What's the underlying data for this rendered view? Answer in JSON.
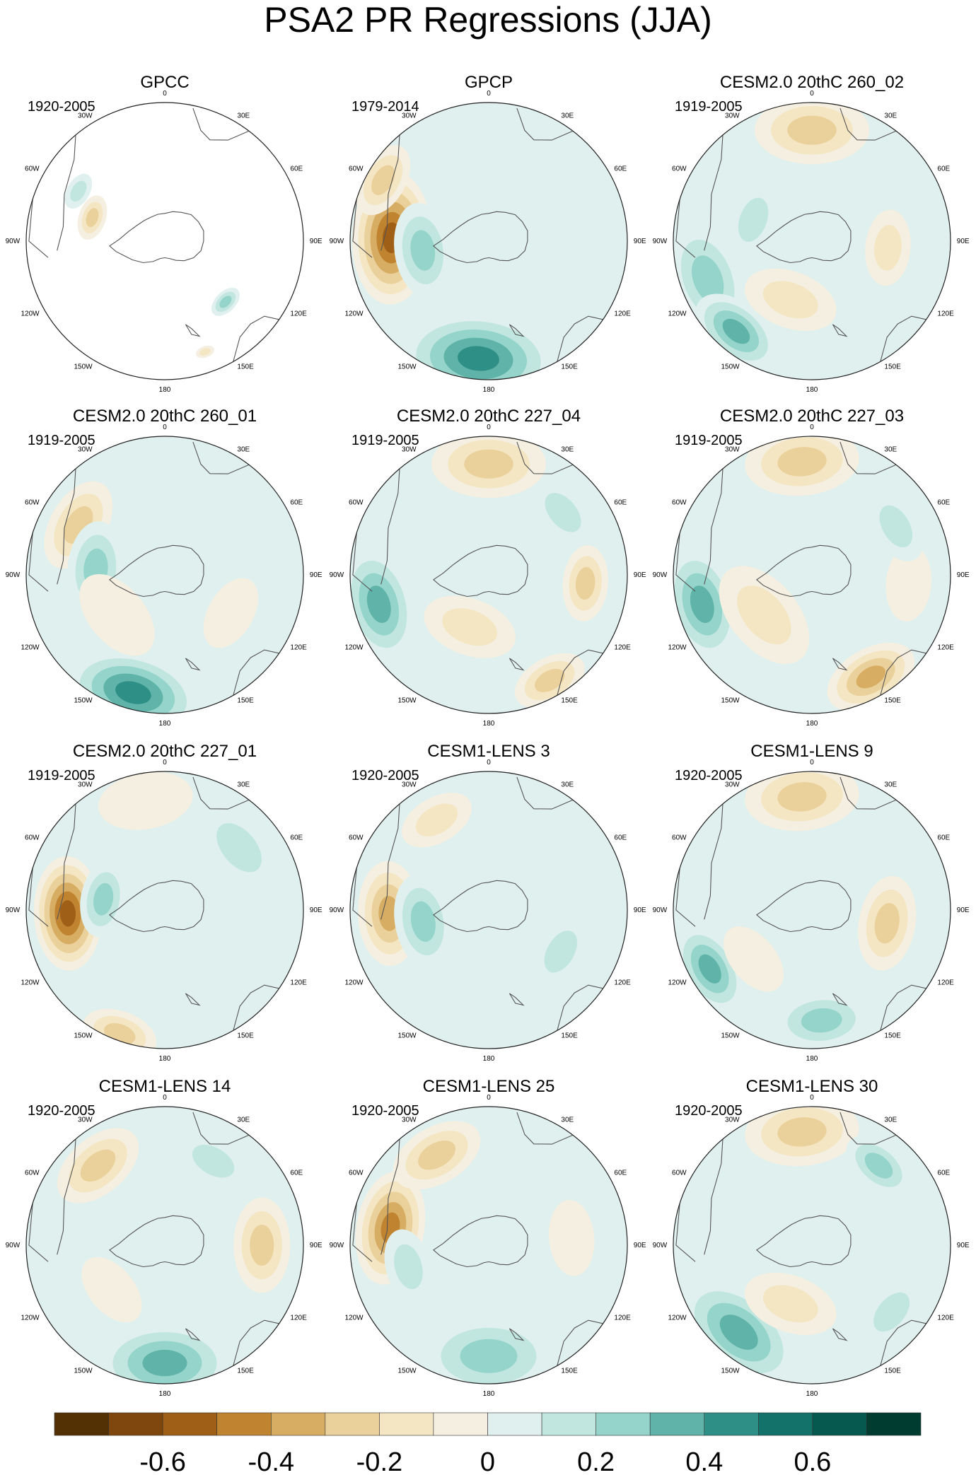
{
  "chart_data": {
    "type": "heatmap",
    "projection": "south-polar-stereographic",
    "title": "PSA2 PR Regressions (JJA)",
    "longitude_labels": [
      "0",
      "30E",
      "60E",
      "90E",
      "120E",
      "150E",
      "180",
      "150W",
      "120W",
      "90W",
      "60W",
      "30W"
    ],
    "panels": [
      {
        "title": "GPCC",
        "period": "1920-2005",
        "coverage": "land-only"
      },
      {
        "title": "GPCP",
        "period": "1979-2014",
        "coverage": "global"
      },
      {
        "title": "CESM2.0 20thC 260_02",
        "period": "1919-2005",
        "coverage": "global"
      },
      {
        "title": "CESM2.0 20thC 260_01",
        "period": "1919-2005",
        "coverage": "global"
      },
      {
        "title": "CESM2.0 20thC 227_04",
        "period": "1919-2005",
        "coverage": "global"
      },
      {
        "title": "CESM2.0 20thC 227_03",
        "period": "1919-2005",
        "coverage": "global"
      },
      {
        "title": "CESM2.0 20thC 227_01",
        "period": "1919-2005",
        "coverage": "global"
      },
      {
        "title": "CESM1-LENS 3",
        "period": "1920-2005",
        "coverage": "global"
      },
      {
        "title": "CESM1-LENS 9",
        "period": "1920-2005",
        "coverage": "global"
      },
      {
        "title": "CESM1-LENS 14",
        "period": "1920-2005",
        "coverage": "global"
      },
      {
        "title": "CESM1-LENS 25",
        "period": "1920-2005",
        "coverage": "global"
      },
      {
        "title": "CESM1-LENS 30",
        "period": "1920-2005",
        "coverage": "global"
      }
    ],
    "colorbar": {
      "levels": [
        -0.7,
        -0.6,
        -0.5,
        -0.4,
        -0.3,
        -0.2,
        -0.1,
        0,
        0.1,
        0.2,
        0.3,
        0.4,
        0.5,
        0.6,
        0.7
      ],
      "colors": [
        "#543005",
        "#7f470d",
        "#9f5f17",
        "#c08431",
        "#d7ad63",
        "#ead09a",
        "#f5e6c3",
        "#f4efe1",
        "#e0f0ee",
        "#c1e6e0",
        "#94d4ca",
        "#5fb3a8",
        "#2e8f86",
        "#13726a",
        "#06594e",
        "#003c30"
      ],
      "tick_values": [
        -0.6,
        -0.4,
        -0.2,
        0,
        0.2,
        0.4,
        0.6
      ],
      "tick_labels": [
        "-0.6",
        "-0.4",
        "-0.2",
        "0",
        "0.2",
        "0.4",
        "0.6"
      ]
    }
  }
}
